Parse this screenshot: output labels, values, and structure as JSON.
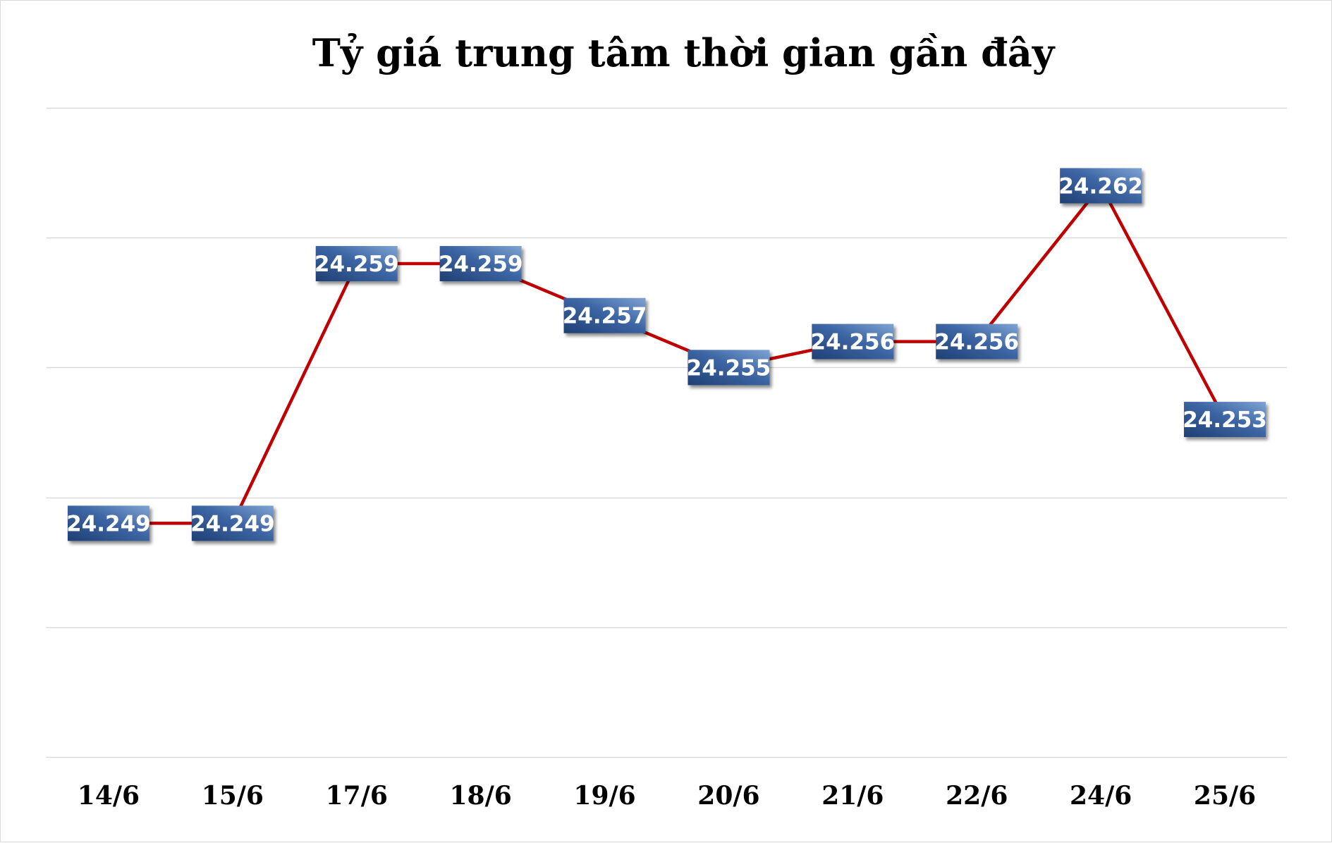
{
  "chart_data": {
    "type": "line",
    "title": "Tỷ giá trung tâm thời gian gần đây",
    "xlabel": "",
    "ylabel": "",
    "categories": [
      "14/6",
      "15/6",
      "17/6",
      "18/6",
      "19/6",
      "20/6",
      "21/6",
      "22/6",
      "24/6",
      "25/6"
    ],
    "series": [
      {
        "values": [
          24249,
          24249,
          24259,
          24259,
          24257,
          24255,
          24256,
          24256,
          24262,
          24253
        ],
        "labels": [
          "24.249",
          "24.249",
          "24.259",
          "24.259",
          "24.257",
          "24.255",
          "24.256",
          "24.256",
          "24.262",
          "24.253"
        ]
      }
    ],
    "ylim": [
      24240,
      24265
    ],
    "y_gridlines": [
      24240,
      24245,
      24250,
      24255,
      24260,
      24265
    ],
    "grid": true,
    "y_tick_labels_visible": false,
    "legend": "none",
    "colors": {
      "line": "#c00000",
      "label_bg_top": "#1f3f74",
      "label_bg_bottom": "#7fa3d3",
      "grid": "#d9d9d9"
    }
  }
}
